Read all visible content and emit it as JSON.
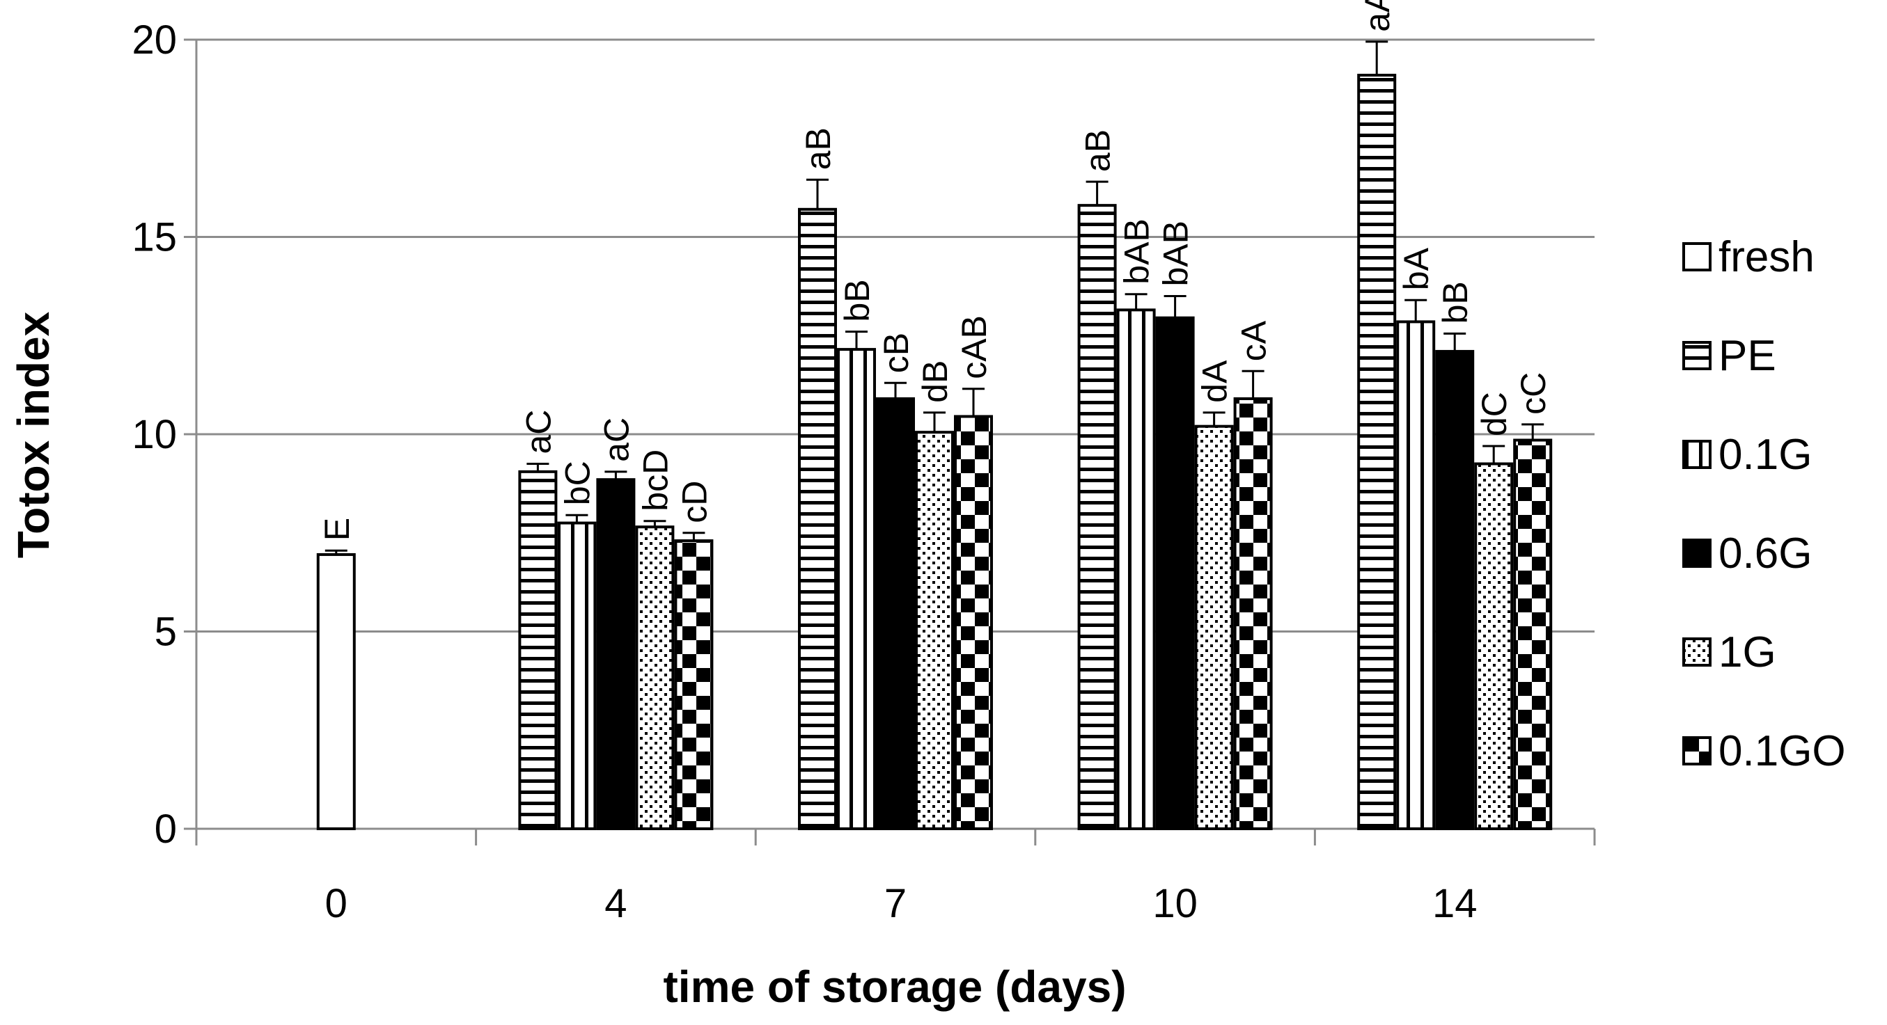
{
  "chart_data": {
    "type": "bar",
    "title": "",
    "xlabel": "time of storage (days)",
    "ylabel": "Totox  index",
    "ylim": [
      0,
      20
    ],
    "yticks": [
      0,
      5,
      10,
      15,
      20
    ],
    "grid": true,
    "legend_position": "right",
    "categories": [
      "0",
      "4",
      "7",
      "10",
      "14"
    ],
    "series": [
      {
        "name": "fresh",
        "pattern": "empty",
        "values": [
          6.95,
          null,
          null,
          null,
          null
        ],
        "errors": [
          0.1,
          null,
          null,
          null,
          null
        ],
        "labels": [
          "E",
          null,
          null,
          null,
          null
        ]
      },
      {
        "name": "PE",
        "pattern": "horizontal",
        "values": [
          null,
          9.05,
          15.7,
          15.8,
          19.1
        ],
        "errors": [
          null,
          0.2,
          0.75,
          0.6,
          0.85
        ],
        "labels": [
          null,
          "aC",
          "aB",
          "aB",
          "aA"
        ]
      },
      {
        "name": "0.1G",
        "pattern": "vertical",
        "values": [
          null,
          7.75,
          12.15,
          13.15,
          12.85
        ],
        "errors": [
          null,
          0.2,
          0.45,
          0.4,
          0.55
        ],
        "labels": [
          null,
          "bC",
          "bB",
          "bAB",
          "bA"
        ]
      },
      {
        "name": "0.6G",
        "pattern": "solid",
        "values": [
          null,
          8.85,
          10.9,
          12.95,
          12.1
        ],
        "errors": [
          null,
          0.2,
          0.4,
          0.55,
          0.45
        ],
        "labels": [
          null,
          "aC",
          "cB",
          "bAB",
          "bB"
        ]
      },
      {
        "name": "1G",
        "pattern": "dots",
        "values": [
          null,
          7.65,
          10.05,
          10.2,
          9.25
        ],
        "errors": [
          null,
          0.15,
          0.5,
          0.35,
          0.45
        ],
        "labels": [
          null,
          "bcD",
          "dB",
          "dA",
          "dC"
        ]
      },
      {
        "name": "0.1GO",
        "pattern": "checker",
        "values": [
          null,
          7.3,
          10.45,
          10.9,
          9.85
        ],
        "errors": [
          null,
          0.2,
          0.7,
          0.7,
          0.4
        ],
        "labels": [
          null,
          "cD",
          "cAB",
          "cA",
          "cC"
        ]
      }
    ],
    "colors": {
      "bar_fill": "#ffffff",
      "bar_stroke": "#000000",
      "grid": "#8c8c8c",
      "axis": "#8c8c8c"
    }
  }
}
